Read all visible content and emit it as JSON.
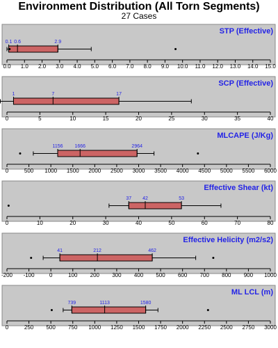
{
  "title": "Environment Distribution (All Torn Segments)",
  "subtitle": "27 Cases",
  "colors": {
    "panel_bg": "#c8c8c8",
    "box_fill": "#cc6464",
    "label_color": "#2323e6",
    "axis_color": "#000000"
  },
  "chart_data": [
    {
      "type": "box",
      "title": "STP (Effective)",
      "xlim": [
        0.0,
        15.0
      ],
      "ticks": [
        0.0,
        1.0,
        2.0,
        3.0,
        4.0,
        5.0,
        6.0,
        7.0,
        8.0,
        9.0,
        10.0,
        11.0,
        12.0,
        13.0,
        14.0,
        15.0
      ],
      "tick_labels": [
        "0.0",
        "1.0",
        "2.0",
        "3.0",
        "4.0",
        "5.0",
        "6.0",
        "7.0",
        "8.0",
        "9.0",
        "10.0",
        "11.0",
        "12.0",
        "13.0",
        "14.0",
        "15.0"
      ],
      "whisker_low": 0.0,
      "q1": 0.1,
      "median": 0.6,
      "q3": 2.9,
      "whisker_high": 4.8,
      "outliers": [
        0.15,
        9.6
      ],
      "labels": [
        "0.1",
        "0.6",
        "2.9"
      ]
    },
    {
      "type": "box",
      "title": "SCP (Effective)",
      "xlim": [
        0,
        40
      ],
      "ticks": [
        0,
        5,
        10,
        15,
        20,
        25,
        30,
        35,
        40
      ],
      "tick_labels": [
        "0",
        "5",
        "10",
        "15",
        "20",
        "25",
        "30",
        "35",
        "40"
      ],
      "whisker_low": -1,
      "q1": 1,
      "median": 7,
      "q3": 17,
      "whisker_high": 28,
      "outliers": [],
      "labels": [
        "1",
        "7",
        "17"
      ]
    },
    {
      "type": "box",
      "title": "MLCAPE (J/Kg)",
      "xlim": [
        0,
        6000
      ],
      "ticks": [
        0,
        500,
        1000,
        1500,
        2000,
        2500,
        3000,
        3500,
        4000,
        4500,
        5000,
        5500,
        6000
      ],
      "tick_labels": [
        "0",
        "500",
        "1000",
        "1500",
        "2000",
        "2500",
        "3000",
        "3500",
        "4000",
        "4500",
        "5000",
        "5500",
        "6000"
      ],
      "whisker_low": 600,
      "q1": 1156,
      "median": 1666,
      "q3": 2964,
      "whisker_high": 3350,
      "outliers": [
        300,
        4350
      ],
      "labels": [
        "1156",
        "1666",
        "2964"
      ]
    },
    {
      "type": "box",
      "title": "Effective Shear (kt)",
      "xlim": [
        0,
        80
      ],
      "ticks": [
        0,
        10,
        20,
        30,
        40,
        50,
        60,
        70,
        80
      ],
      "tick_labels": [
        "0",
        "10",
        "20",
        "30",
        "40",
        "50",
        "60",
        "70",
        "80"
      ],
      "whisker_low": 31,
      "q1": 37,
      "median": 42,
      "q3": 53,
      "whisker_high": 65,
      "outliers": [
        0.5
      ],
      "labels": [
        "37",
        "42",
        "53"
      ]
    },
    {
      "type": "box",
      "title": "Effective Helicity (m2/s2)",
      "xlim": [
        -200,
        1000
      ],
      "ticks": [
        -200,
        -100,
        0,
        100,
        200,
        300,
        400,
        500,
        600,
        700,
        800,
        900,
        1000
      ],
      "tick_labels": [
        "-200",
        "-100",
        "0",
        "100",
        "200",
        "300",
        "400",
        "500",
        "600",
        "700",
        "800",
        "900",
        "1000"
      ],
      "whisker_low": -35,
      "q1": 41,
      "median": 212,
      "q3": 462,
      "whisker_high": 660,
      "outliers": [
        -90,
        740
      ],
      "labels": [
        "41",
        "212",
        "462"
      ]
    },
    {
      "type": "box",
      "title": "ML LCL (m)",
      "xlim": [
        0,
        3000
      ],
      "ticks": [
        0,
        250,
        500,
        750,
        1000,
        1250,
        1500,
        1750,
        2000,
        2250,
        2500,
        2750,
        3000
      ],
      "tick_labels": [
        "0",
        "250",
        "500",
        "750",
        "1000",
        "1250",
        "1500",
        "1750",
        "2000",
        "2250",
        "2500",
        "2750",
        "3000"
      ],
      "whisker_low": 640,
      "q1": 739,
      "median": 1113,
      "q3": 1580,
      "whisker_high": 1720,
      "outliers": [
        510,
        2290
      ],
      "labels": [
        "739",
        "1113",
        "1580"
      ]
    }
  ]
}
